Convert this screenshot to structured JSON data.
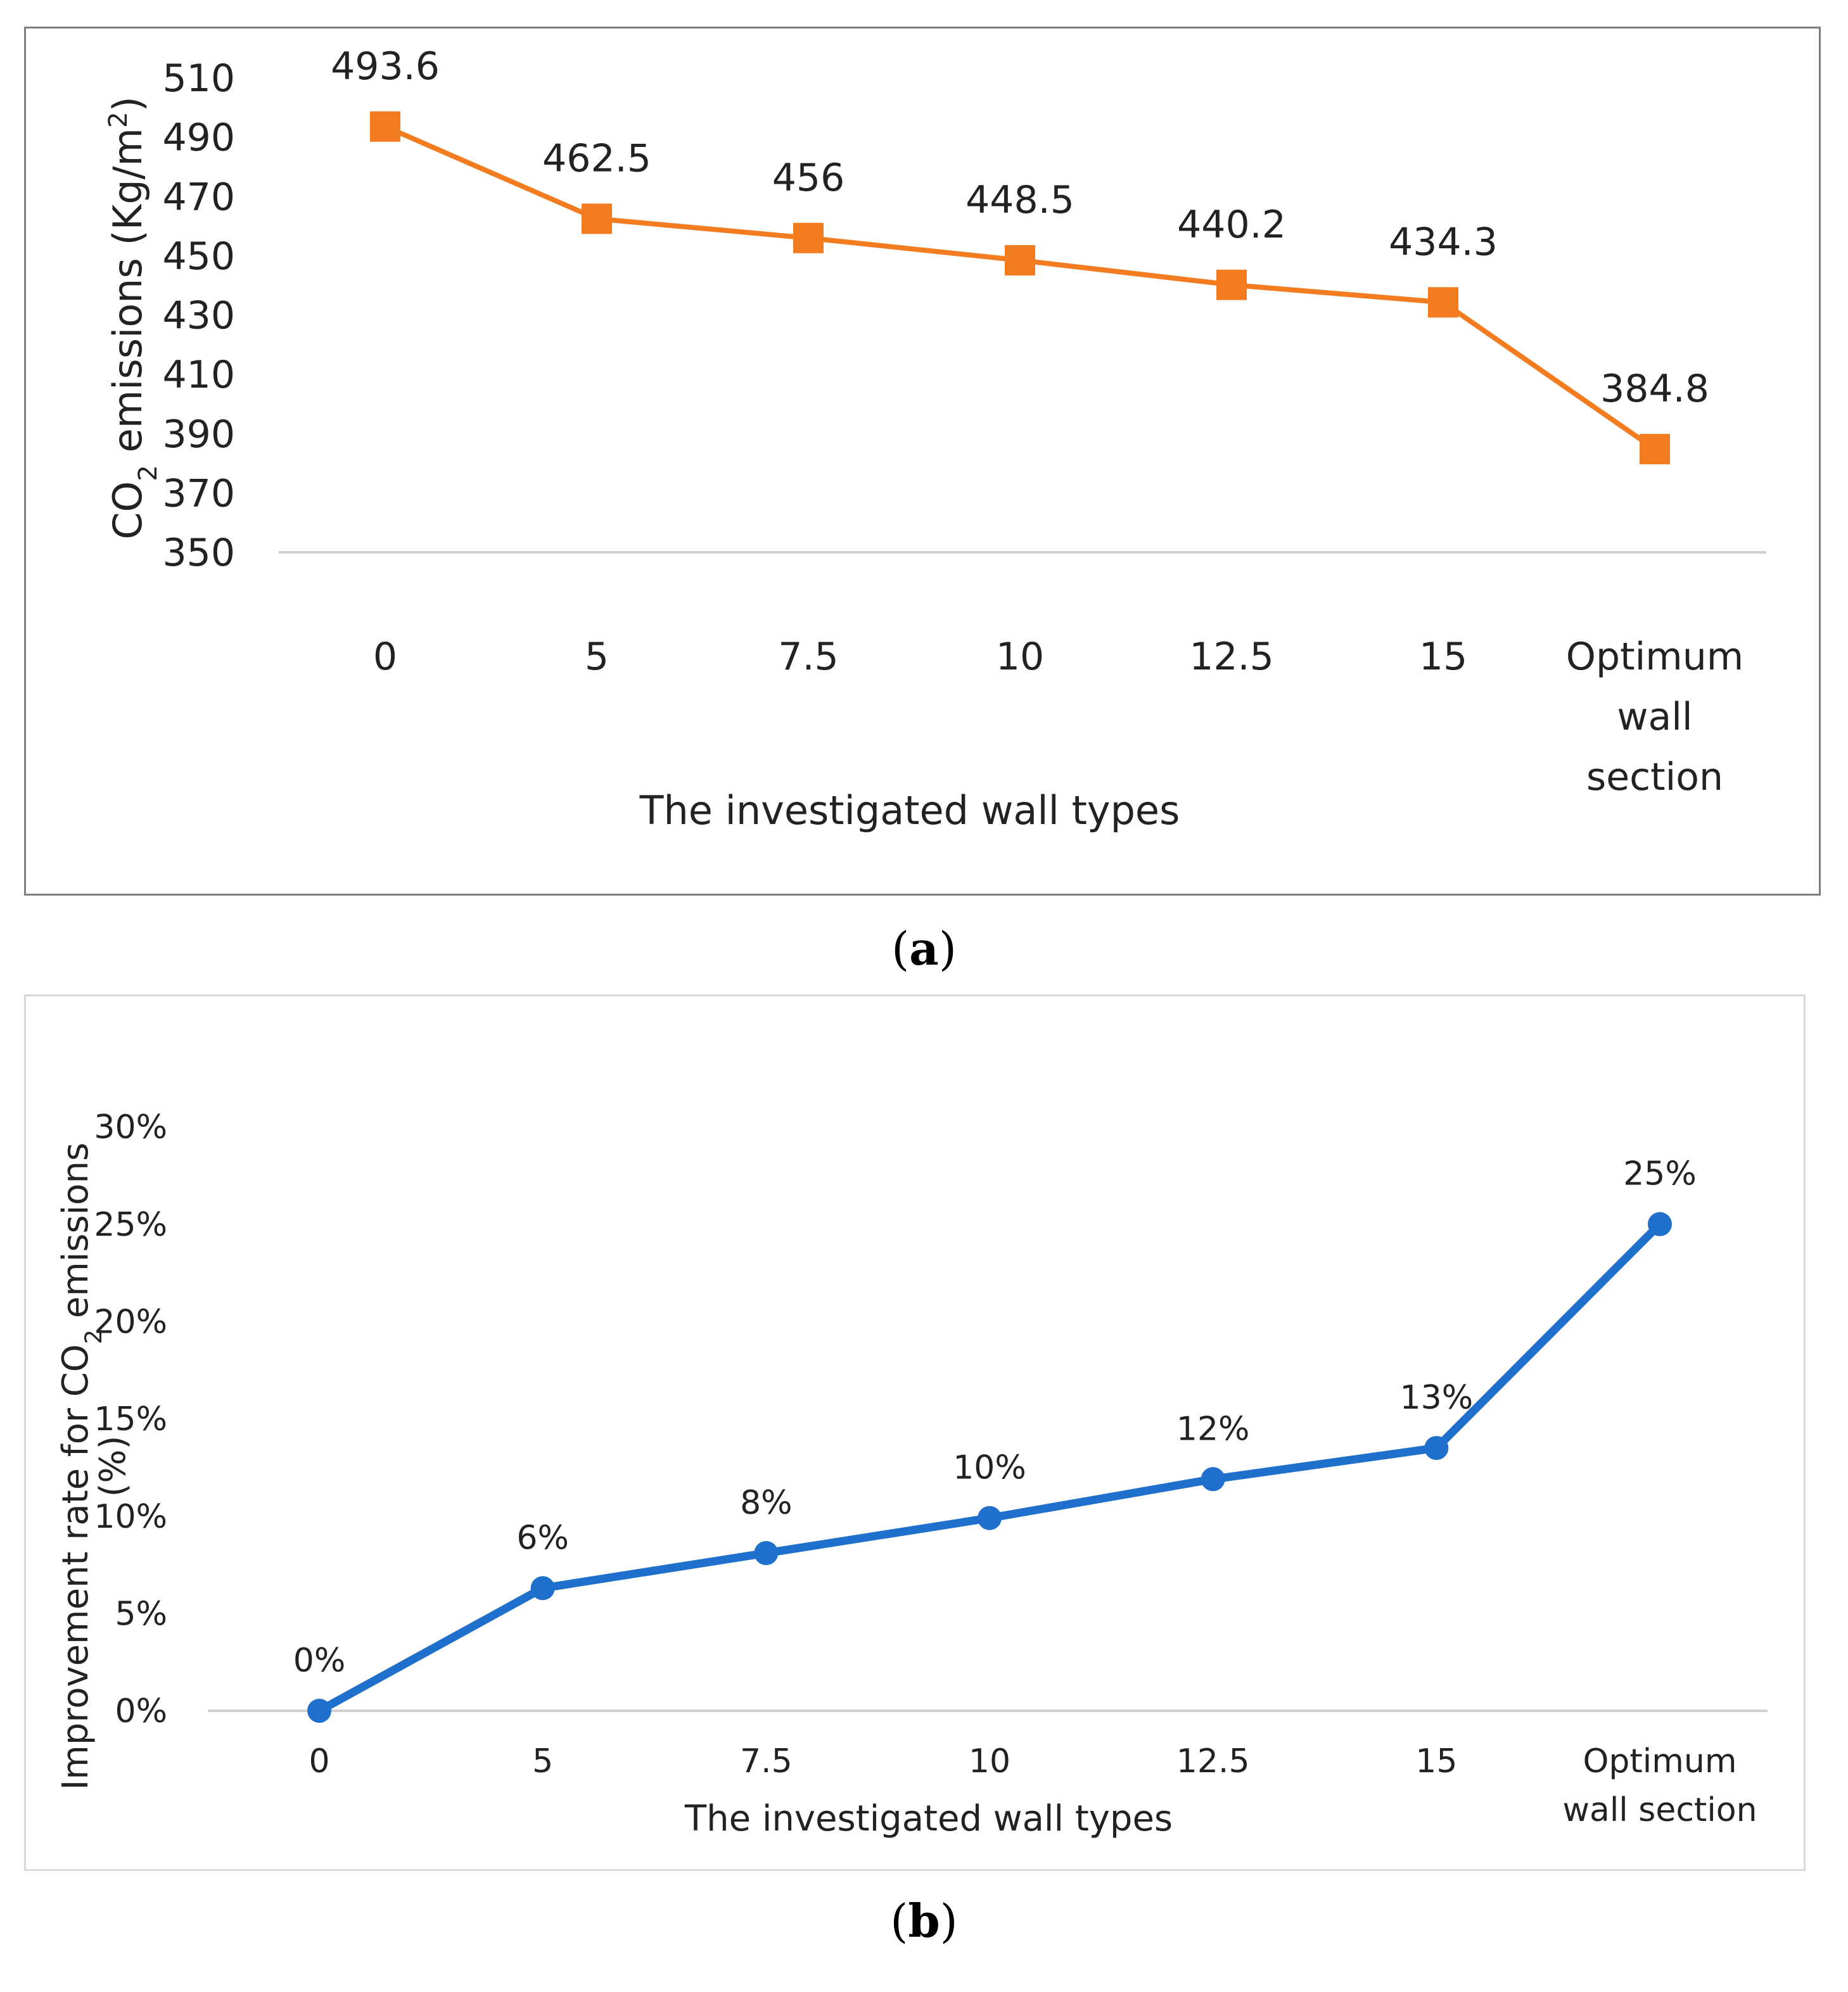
{
  "chart_data": [
    {
      "type": "line",
      "panel_label": "a",
      "categories": [
        "0",
        "5",
        "7.5",
        "10",
        "12.5",
        "15",
        "Optimum wall section"
      ],
      "category_lines": [
        [
          "0"
        ],
        [
          "5"
        ],
        [
          "7.5"
        ],
        [
          "10"
        ],
        [
          "12.5"
        ],
        [
          "15"
        ],
        [
          "Optimum",
          "wall",
          "section"
        ]
      ],
      "series": [
        {
          "values": [
            493.6,
            462.5,
            456,
            448.5,
            440.2,
            434.3,
            384.8
          ],
          "labels": [
            "493.6",
            "462.5",
            "456",
            "448.5",
            "440.2",
            "434.3",
            "384.8"
          ],
          "color": "#F47C20",
          "marker": "square"
        }
      ],
      "xlabel": "The investigated wall types",
      "ylabel": {
        "pre": "CO",
        "sub": "2",
        "mid": " emissions (Kg/m",
        "sup": "2",
        "post": ")"
      },
      "ylim": [
        350,
        510
      ],
      "yticks": [
        "350",
        "370",
        "390",
        "410",
        "430",
        "450",
        "470",
        "490",
        "510"
      ],
      "grid": false
    },
    {
      "type": "line",
      "panel_label": "b",
      "categories": [
        "0",
        "5",
        "7.5",
        "10",
        "12.5",
        "15",
        "Optimum wall section"
      ],
      "category_lines": [
        [
          "0"
        ],
        [
          "5"
        ],
        [
          "7.5"
        ],
        [
          "10"
        ],
        [
          "12.5"
        ],
        [
          "15"
        ],
        [
          "Optimum",
          "wall section"
        ]
      ],
      "series": [
        {
          "values": [
            0,
            6.3,
            8.1,
            9.9,
            11.9,
            13.5,
            25.0
          ],
          "labels": [
            "0%",
            "6%",
            "8%",
            "10%",
            "12%",
            "13%",
            "25%"
          ],
          "color": "#1F6FCC",
          "marker": "circle"
        }
      ],
      "xlabel": "The investigated wall types",
      "ylabel": {
        "pre": "Improvement  rate for CO",
        "sub": "2",
        "mid": " emissions",
        "line2": "(%)"
      },
      "ylim": [
        0,
        30
      ],
      "yticks": [
        "0%",
        "5%",
        "10%",
        "15%",
        "20%",
        "25%",
        "30%"
      ],
      "grid": false
    }
  ]
}
